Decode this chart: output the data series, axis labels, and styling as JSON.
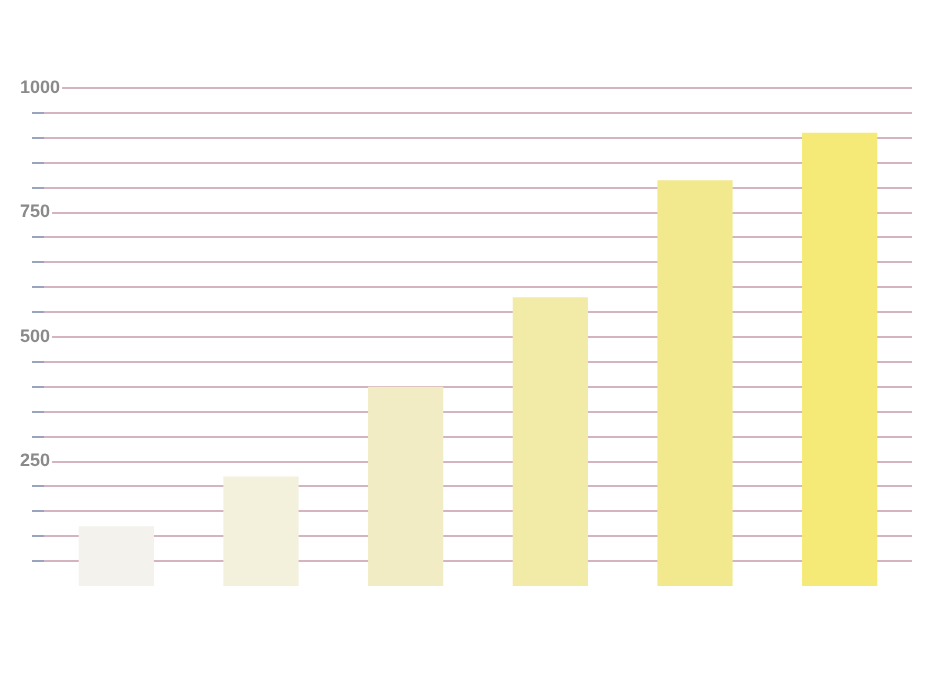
{
  "chart_data": {
    "type": "bar",
    "categories": [
      null,
      null,
      null,
      null,
      null,
      null
    ],
    "values": [
      120,
      220,
      400,
      580,
      815,
      910
    ],
    "colors": [
      "#f3f2ec",
      "#f3f0dc",
      "#f2ecc4",
      "#f2eba8",
      "#f2e98e",
      "#f5ea78"
    ],
    "ylim": [
      0,
      1000
    ],
    "yticks": [
      {
        "value": 50,
        "label": null
      },
      {
        "value": 100,
        "label": null
      },
      {
        "value": 150,
        "label": null
      },
      {
        "value": 200,
        "label": null
      },
      250,
      {
        "value": 300,
        "label": null
      },
      {
        "value": 350,
        "label": null
      },
      {
        "value": 400,
        "label": null
      },
      {
        "value": 450,
        "label": null
      },
      500,
      {
        "value": 550,
        "label": null
      },
      {
        "value": 600,
        "label": null
      },
      {
        "value": 650,
        "label": null
      },
      {
        "value": 700,
        "label": null
      },
      750,
      {
        "value": 800,
        "label": null
      },
      {
        "value": 850,
        "label": null
      },
      {
        "value": 900,
        "label": null
      },
      {
        "value": 950,
        "label": null
      },
      1000
    ],
    "grid": "y",
    "legend": false
  }
}
